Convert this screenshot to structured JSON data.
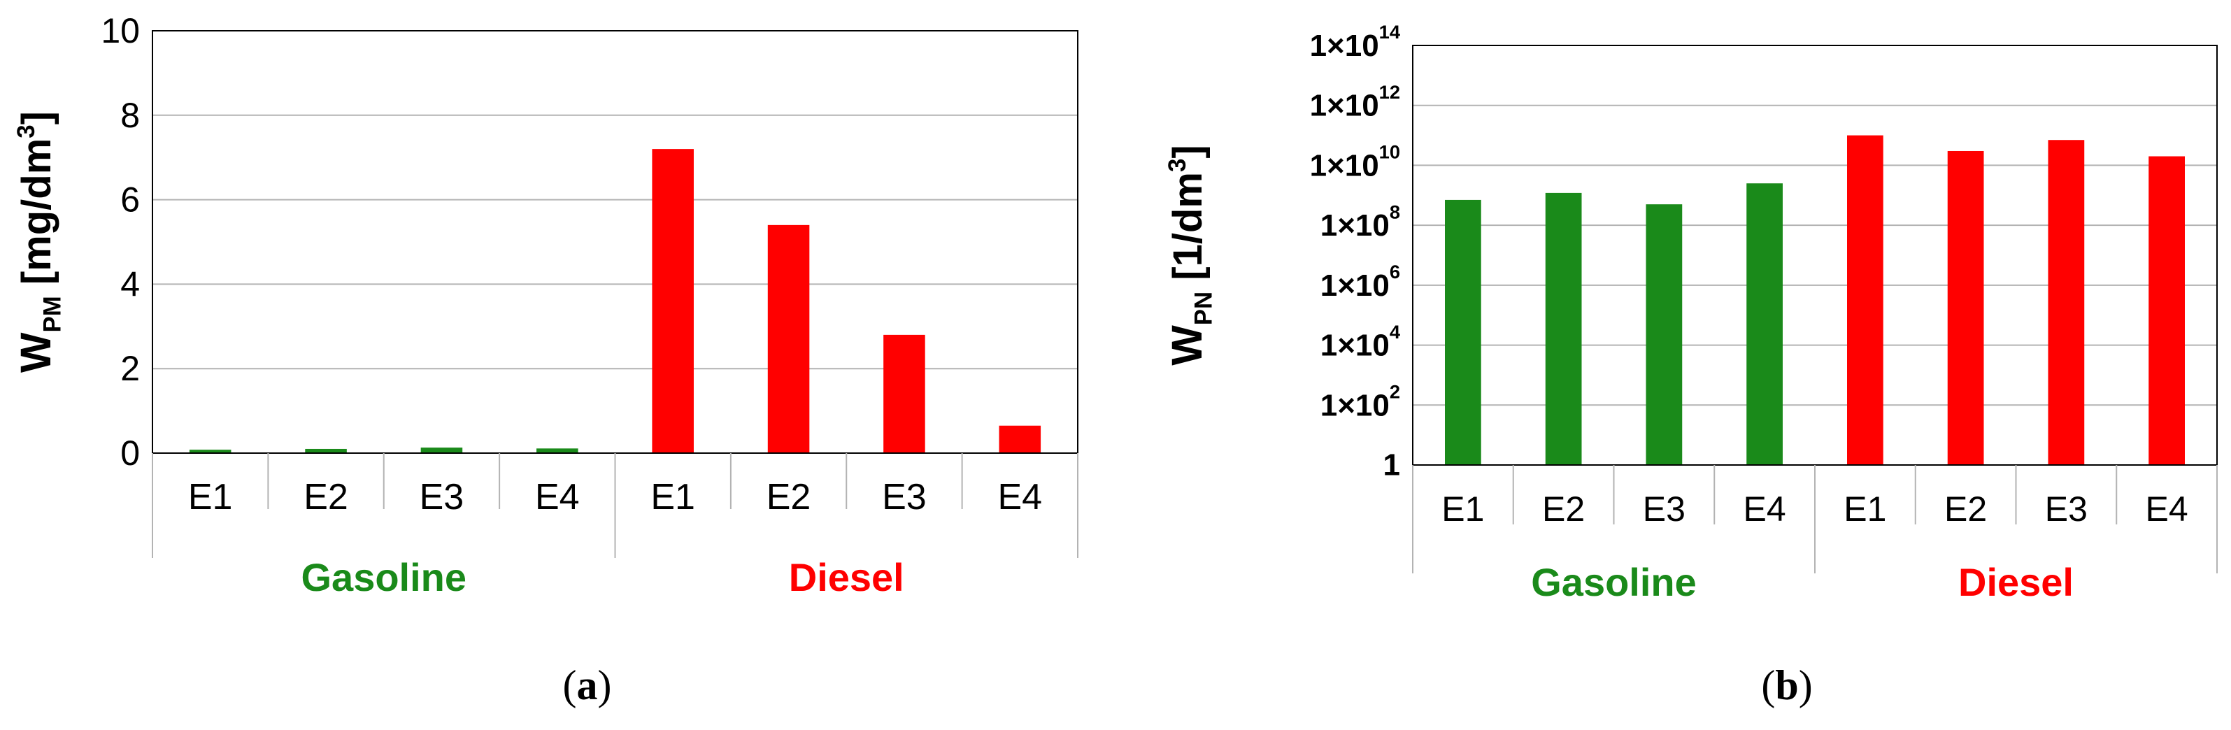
{
  "colors": {
    "gasoline": "#1a8a1a",
    "diesel": "#ff0000",
    "gridline": "#b3b3b3",
    "axis": "#000000"
  },
  "chart_data": [
    {
      "panel": "(a)",
      "type": "bar",
      "ylabel_main": "W",
      "ylabel_sub": "PM",
      "ylabel_unit_pre": " [mg/dm",
      "ylabel_unit_sup": "3",
      "ylabel_unit_post": "]",
      "yscale": "linear",
      "ylim": [
        0,
        10
      ],
      "yticks": [
        0,
        2,
        4,
        6,
        8,
        10
      ],
      "grid": true,
      "categories": [
        "E1",
        "E2",
        "E3",
        "E4",
        "E1",
        "E2",
        "E3",
        "E4"
      ],
      "groups": [
        {
          "label": "Gasoline",
          "color_key": "gasoline",
          "values": [
            0.08,
            0.1,
            0.13,
            0.11
          ]
        },
        {
          "label": "Diesel",
          "color_key": "diesel",
          "values": [
            7.2,
            5.4,
            2.8,
            0.65
          ]
        }
      ]
    },
    {
      "panel": "(b)",
      "type": "bar",
      "ylabel_main": "W",
      "ylabel_sub": "PN",
      "ylabel_unit_pre": " [1/dm",
      "ylabel_unit_sup": "3",
      "ylabel_unit_post": "]",
      "yscale": "log",
      "ylim": [
        1,
        100000000000000.0
      ],
      "ytick_exponents": [
        0,
        2,
        4,
        6,
        8,
        10,
        12,
        14
      ],
      "ytick_base_label": "1×10",
      "ytick_zero_label": "1",
      "grid": true,
      "categories": [
        "E1",
        "E2",
        "E3",
        "E4",
        "E1",
        "E2",
        "E3",
        "E4"
      ],
      "groups": [
        {
          "label": "Gasoline",
          "color_key": "gasoline",
          "values": [
            700000000.0,
            1200000000.0,
            500000000.0,
            2500000000.0
          ]
        },
        {
          "label": "Diesel",
          "color_key": "diesel",
          "values": [
            100000000000.0,
            30000000000.0,
            70000000000.0,
            20000000000.0
          ]
        }
      ]
    }
  ]
}
